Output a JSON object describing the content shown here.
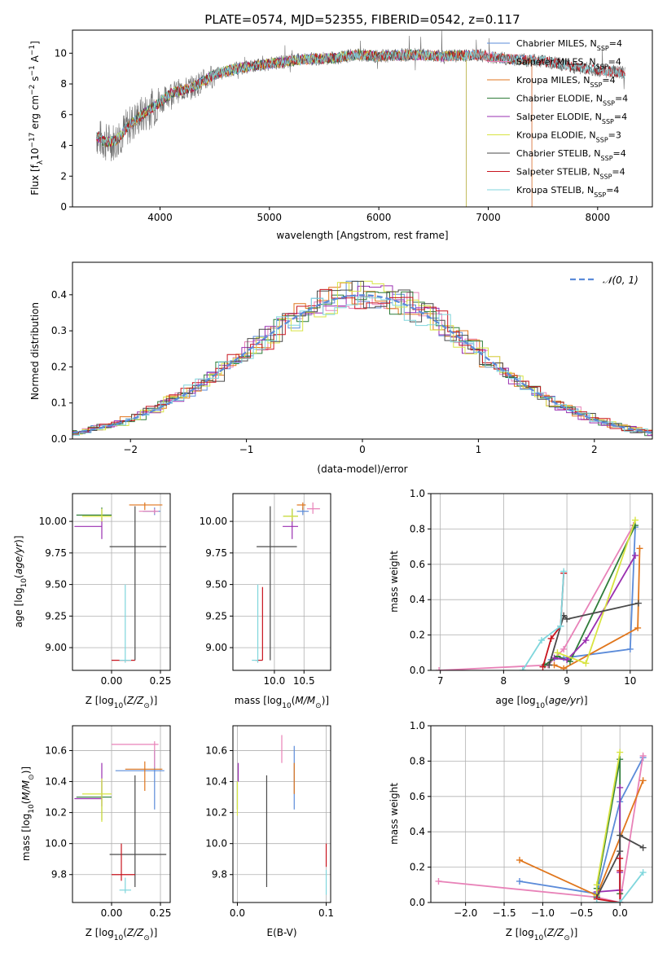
{
  "colors": {
    "Chabrier MILES": "#5b8bd9",
    "Salpeter MILES": "#e882b8",
    "Kroupa MILES": "#e0761c",
    "Chabrier ELODIE": "#2f7d3a",
    "Salpeter ELODIE": "#9a2fb0",
    "Kroupa ELODIE": "#d8e442",
    "Chabrier STELIB": "#4a4a4a",
    "Salpeter STELIB": "#c8141e",
    "Kroupa STELIB": "#7fd6dc",
    "data": "#707070",
    "normal": "#5b8bd9"
  },
  "chart_data": [
    {
      "id": "spectrum",
      "type": "line",
      "title": "PLATE=0574, MJD=52355, FIBERID=0542, z=0.117",
      "xlabel": "wavelength [Angstrom, rest frame]",
      "ylabel": "Flux [fλ10⁻¹⁷ erg cm⁻² s⁻¹ A⁻¹]",
      "xlim": [
        3200,
        8500
      ],
      "ylim": [
        0,
        11.5
      ],
      "xticks": [
        4000,
        5000,
        6000,
        7000,
        8000
      ],
      "yticks": [
        0,
        2,
        4,
        6,
        8,
        10
      ],
      "grid": false,
      "legend_position": "top-right",
      "legend": [
        "Chabrier MILES, N_SSP=4",
        "Salpeter MILES, N_SSP=4",
        "Kroupa MILES, N_SSP=4",
        "Chabrier ELODIE, N_SSP=4",
        "Salpeter ELODIE, N_SSP=4",
        "Kroupa ELODIE, N_SSP=3",
        "Chabrier STELIB, N_SSP=4",
        "Salpeter STELIB, N_SSP=4",
        "Kroupa STELIB, N_SSP=4"
      ],
      "continuum": [
        [
          3420,
          4.6
        ],
        [
          3500,
          4.2
        ],
        [
          3600,
          4.3
        ],
        [
          3700,
          5.2
        ],
        [
          3800,
          5.8
        ],
        [
          3900,
          6.3
        ],
        [
          4000,
          6.8
        ],
        [
          4100,
          7.4
        ],
        [
          4200,
          7.6
        ],
        [
          4300,
          7.8
        ],
        [
          4400,
          8.2
        ],
        [
          4500,
          8.6
        ],
        [
          4700,
          9.0
        ],
        [
          5000,
          9.3
        ],
        [
          5300,
          9.6
        ],
        [
          5600,
          9.7
        ],
        [
          5800,
          9.9
        ],
        [
          6000,
          9.8
        ],
        [
          6300,
          9.9
        ],
        [
          6600,
          9.8
        ],
        [
          6900,
          9.9
        ],
        [
          7200,
          9.6
        ],
        [
          7500,
          9.5
        ],
        [
          7800,
          9.1
        ],
        [
          8000,
          8.9
        ],
        [
          8250,
          8.7
        ]
      ],
      "model_ranges": {
        "MILES": [
          3420,
          7400
        ],
        "ELODIE": [
          3420,
          6800
        ],
        "STELIB": [
          3420,
          8250
        ]
      }
    },
    {
      "id": "residuals",
      "type": "histogram",
      "xlabel": "(data-model)/error",
      "ylabel": "Normed distribution",
      "xlim": [
        -2.5,
        2.5
      ],
      "ylim": [
        0,
        0.49
      ],
      "xticks": [
        -2,
        -1,
        0,
        1,
        2
      ],
      "yticks": [
        0.0,
        0.1,
        0.2,
        0.3,
        0.4
      ],
      "grid": true,
      "legend_position": "top-right",
      "legend": [
        "𝒩(0, 1)"
      ],
      "normal_curve": {
        "mean": 0,
        "sigma": 1
      }
    },
    {
      "id": "age_vs_Z",
      "type": "errorbar",
      "xlabel": "Z [log₁₀(Z/Z⊙)]",
      "ylabel": "age  [log₁₀(age/yr)]",
      "xlim": [
        -0.2,
        0.3
      ],
      "ylim": [
        8.82,
        10.22
      ],
      "xticks": [
        0.0,
        0.25
      ],
      "yticks": [
        9.0,
        9.25,
        9.5,
        9.75,
        10.0
      ],
      "points": [
        {
          "model": "Chabrier MILES",
          "x": 0.22,
          "y": 10.08,
          "xerr": [
            0.06,
            0.03
          ],
          "yerr": [
            0.03,
            0.03
          ]
        },
        {
          "model": "Salpeter MILES",
          "x": 0.22,
          "y": 10.08,
          "xerr": [
            0.08,
            0.02
          ],
          "yerr": [
            0.02,
            0.02
          ]
        },
        {
          "model": "Kroupa MILES",
          "x": 0.17,
          "y": 10.13,
          "xerr": [
            0.08,
            0.09
          ],
          "yerr": [
            0.04,
            0.02
          ]
        },
        {
          "model": "Chabrier ELODIE",
          "x": -0.05,
          "y": 10.05,
          "xerr": [
            0.13,
            0.05
          ],
          "yerr": [
            0.04,
            0.06
          ]
        },
        {
          "model": "Salpeter ELODIE",
          "x": -0.05,
          "y": 9.96,
          "xerr": [
            0.14,
            0.0
          ],
          "yerr": [
            0.1,
            0.07
          ]
        },
        {
          "model": "Kroupa ELODIE",
          "x": -0.05,
          "y": 10.04,
          "xerr": [
            0.1,
            0.05
          ],
          "yerr": [
            0.04,
            0.06
          ]
        },
        {
          "model": "Chabrier STELIB",
          "x": 0.12,
          "y": 9.8,
          "xerr": [
            0.13,
            0.16
          ],
          "yerr": [
            0.9,
            0.32
          ]
        },
        {
          "model": "Salpeter STELIB",
          "x": 0.05,
          "y": 8.9,
          "xerr": [
            0.05,
            0.07
          ],
          "yerr": [
            0.0,
            0.0
          ]
        },
        {
          "model": "Kroupa STELIB",
          "x": 0.07,
          "y": 8.9,
          "xerr": [
            0.03,
            0.03
          ],
          "yerr": [
            0.02,
            0.6
          ]
        }
      ]
    },
    {
      "id": "age_vs_mass",
      "type": "errorbar",
      "xlabel": "mass [log₁₀(M/M⊙)]",
      "ylabel": "",
      "xlim": [
        9.3,
        10.95
      ],
      "ylim": [
        8.82,
        10.22
      ],
      "xticks": [
        10.0,
        10.5
      ],
      "yticks": [
        9.0,
        9.25,
        9.5,
        9.75,
        10.0
      ],
      "points": [
        {
          "model": "Chabrier MILES",
          "x": 10.48,
          "y": 10.08,
          "xerr": [
            0.1,
            0.1
          ],
          "yerr": [
            0.03,
            0.03
          ]
        },
        {
          "model": "Salpeter MILES",
          "x": 10.65,
          "y": 10.1,
          "xerr": [
            0.1,
            0.12
          ],
          "yerr": [
            0.04,
            0.05
          ]
        },
        {
          "model": "Kroupa MILES",
          "x": 10.48,
          "y": 10.13,
          "xerr": [
            0.1,
            0.05
          ],
          "yerr": [
            0.04,
            0.02
          ]
        },
        {
          "model": "Chabrier ELODIE",
          "x": 10.3,
          "y": 10.04,
          "xerr": [
            0.15,
            0.1
          ],
          "yerr": [
            0.04,
            0.06
          ]
        },
        {
          "model": "Salpeter ELODIE",
          "x": 10.3,
          "y": 9.96,
          "xerr": [
            0.16,
            0.1
          ],
          "yerr": [
            0.1,
            0.07
          ]
        },
        {
          "model": "Kroupa ELODIE",
          "x": 10.3,
          "y": 10.04,
          "xerr": [
            0.15,
            0.1
          ],
          "yerr": [
            0.04,
            0.06
          ]
        },
        {
          "model": "Chabrier STELIB",
          "x": 9.93,
          "y": 9.8,
          "xerr": [
            0.23,
            0.45
          ],
          "yerr": [
            0.9,
            0.32
          ]
        },
        {
          "model": "Salpeter STELIB",
          "x": 9.8,
          "y": 8.9,
          "xerr": [
            0.12,
            0.0
          ],
          "yerr": [
            0.0,
            0.58
          ]
        },
        {
          "model": "Kroupa STELIB",
          "x": 9.72,
          "y": 8.9,
          "xerr": [
            0.1,
            0.0
          ],
          "yerr": [
            0.02,
            0.6
          ]
        }
      ]
    },
    {
      "id": "mass_weight_vs_age",
      "type": "line",
      "xlabel": "age  [log₁₀(age/yr)]",
      "ylabel": "mass weight",
      "xlim": [
        6.85,
        10.35
      ],
      "ylim": [
        0,
        1.0
      ],
      "xticks": [
        7,
        8,
        9,
        10
      ],
      "yticks": [
        0.0,
        0.2,
        0.4,
        0.6,
        0.8,
        1.0
      ],
      "grid": true,
      "series": [
        {
          "model": "Chabrier MILES",
          "x": [
            8.75,
            8.95,
            10.0,
            10.08
          ],
          "y": [
            0.06,
            0.07,
            0.12,
            0.81
          ]
        },
        {
          "model": "Salpeter MILES",
          "x": [
            6.98,
            8.7,
            8.95,
            10.05
          ],
          "y": [
            0.0,
            0.03,
            0.12,
            0.82
          ]
        },
        {
          "model": "Kroupa MILES",
          "x": [
            8.8,
            8.95,
            10.12,
            10.15
          ],
          "y": [
            0.03,
            0.01,
            0.24,
            0.69
          ]
        },
        {
          "model": "Chabrier ELODIE",
          "x": [
            8.65,
            8.85,
            9.05,
            10.08
          ],
          "y": [
            0.03,
            0.08,
            0.05,
            0.82
          ]
        },
        {
          "model": "Salpeter ELODIE",
          "x": [
            8.8,
            9.0,
            9.3,
            10.08
          ],
          "y": [
            0.07,
            0.06,
            0.17,
            0.65
          ]
        },
        {
          "model": "Kroupa ELODIE",
          "x": [
            8.85,
            9.3,
            10.08
          ],
          "y": [
            0.1,
            0.04,
            0.85
          ]
        },
        {
          "model": "Chabrier STELIB",
          "x": [
            8.72,
            8.95,
            9.0,
            10.13
          ],
          "y": [
            0.03,
            0.31,
            0.29,
            0.38
          ]
        },
        {
          "model": "Salpeter STELIB",
          "x": [
            8.62,
            8.75,
            8.9,
            8.95
          ],
          "y": [
            0.02,
            0.18,
            0.25,
            0.55
          ]
        },
        {
          "model": "Kroupa STELIB",
          "x": [
            8.3,
            8.6,
            8.9,
            8.95
          ],
          "y": [
            0.0,
            0.17,
            0.25,
            0.56
          ]
        }
      ]
    },
    {
      "id": "mass_vs_Z",
      "type": "errorbar",
      "xlabel": "Z [log₁₀(Z/Z⊙)]",
      "ylabel": "mass [log₁₀(M/M⊙)]",
      "xlim": [
        -0.2,
        0.3
      ],
      "ylim": [
        9.62,
        10.76
      ],
      "xticks": [
        0.0,
        0.25
      ],
      "yticks": [
        9.8,
        10.0,
        10.2,
        10.4,
        10.6
      ],
      "points": [
        {
          "model": "Chabrier MILES",
          "x": 0.22,
          "y": 10.47,
          "xerr": [
            0.2,
            0.05
          ],
          "yerr": [
            0.25,
            0.13
          ]
        },
        {
          "model": "Salpeter MILES",
          "x": 0.22,
          "y": 10.64,
          "xerr": [
            0.22,
            0.02
          ],
          "yerr": [
            0.15,
            0.02
          ]
        },
        {
          "model": "Kroupa MILES",
          "x": 0.17,
          "y": 10.48,
          "xerr": [
            0.1,
            0.09
          ],
          "yerr": [
            0.14,
            0.05
          ]
        },
        {
          "model": "Chabrier ELODIE",
          "x": -0.05,
          "y": 10.3,
          "xerr": [
            0.13,
            0.05
          ],
          "yerr": [
            0.15,
            0.1
          ]
        },
        {
          "model": "Salpeter ELODIE",
          "x": -0.05,
          "y": 10.29,
          "xerr": [
            0.14,
            0.0
          ],
          "yerr": [
            0.05,
            0.23
          ]
        },
        {
          "model": "Kroupa ELODIE",
          "x": -0.05,
          "y": 10.32,
          "xerr": [
            0.1,
            0.05
          ],
          "yerr": [
            0.18,
            0.1
          ]
        },
        {
          "model": "Chabrier STELIB",
          "x": 0.12,
          "y": 9.93,
          "xerr": [
            0.13,
            0.16
          ],
          "yerr": [
            0.21,
            0.51
          ]
        },
        {
          "model": "Salpeter STELIB",
          "x": 0.05,
          "y": 9.8,
          "xerr": [
            0.05,
            0.07
          ],
          "yerr": [
            0.04,
            0.2
          ]
        },
        {
          "model": "Kroupa STELIB",
          "x": 0.07,
          "y": 9.7,
          "xerr": [
            0.03,
            0.03
          ],
          "yerr": [
            0.02,
            0.08
          ]
        }
      ]
    },
    {
      "id": "mass_vs_EBV",
      "type": "errorbar",
      "xlabel": "E(B-V)",
      "ylabel": "",
      "xlim": [
        -0.005,
        0.105
      ],
      "ylim": [
        9.62,
        10.76
      ],
      "xticks": [
        0.0,
        0.1
      ],
      "yticks": [
        9.8,
        10.0,
        10.2,
        10.4,
        10.6
      ],
      "points": [
        {
          "model": "Chabrier MILES",
          "x": 0.064,
          "y": 10.47,
          "xerr": [
            0,
            0
          ],
          "yerr": [
            0.25,
            0.16
          ]
        },
        {
          "model": "Salpeter MILES",
          "x": 0.05,
          "y": 10.6,
          "xerr": [
            0,
            0
          ],
          "yerr": [
            0.08,
            0.1
          ]
        },
        {
          "model": "Kroupa MILES",
          "x": 0.064,
          "y": 10.46,
          "xerr": [
            0,
            0
          ],
          "yerr": [
            0.14,
            0.06
          ]
        },
        {
          "model": "Chabrier ELODIE",
          "x": 0.0,
          "y": 10.3,
          "xerr": [
            0,
            0
          ],
          "yerr": [
            0.08,
            0.1
          ]
        },
        {
          "model": "Salpeter ELODIE",
          "x": 0.001,
          "y": 10.46,
          "xerr": [
            0,
            0
          ],
          "yerr": [
            0.06,
            0.06
          ]
        },
        {
          "model": "Kroupa ELODIE",
          "x": 0.0,
          "y": 10.3,
          "xerr": [
            0,
            0
          ],
          "yerr": [
            0.12,
            0.1
          ]
        },
        {
          "model": "Chabrier STELIB",
          "x": 0.033,
          "y": 10.08,
          "xerr": [
            0,
            0
          ],
          "yerr": [
            0.36,
            0.36
          ]
        },
        {
          "model": "Salpeter STELIB",
          "x": 0.1,
          "y": 9.92,
          "xerr": [
            0,
            0
          ],
          "yerr": [
            0.07,
            0.08
          ]
        },
        {
          "model": "Kroupa STELIB",
          "x": 0.1,
          "y": 9.75,
          "xerr": [
            0,
            0
          ],
          "yerr": [
            0.08,
            0.08
          ]
        }
      ]
    },
    {
      "id": "mass_weight_vs_Z",
      "type": "line",
      "xlabel": "Z [log₁₀(Z/Z⊙)]",
      "ylabel": "mass weight",
      "xlim": [
        -2.45,
        0.42
      ],
      "ylim": [
        0,
        1.0
      ],
      "xticks": [
        -2.0,
        -1.5,
        -1.0,
        -0.5,
        0.0
      ],
      "yticks": [
        0.0,
        0.2,
        0.4,
        0.6,
        0.8,
        1.0
      ],
      "grid": true,
      "series": [
        {
          "model": "Chabrier MILES",
          "x": [
            -1.3,
            -0.3,
            0.0,
            0.3
          ],
          "y": [
            0.12,
            0.05,
            0.57,
            0.82
          ]
        },
        {
          "model": "Salpeter MILES",
          "x": [
            -2.35,
            -0.3,
            0.0,
            0.3
          ],
          "y": [
            0.12,
            0.03,
            0.0,
            0.83
          ]
        },
        {
          "model": "Kroupa MILES",
          "x": [
            -1.3,
            -0.3,
            0.3
          ],
          "y": [
            0.24,
            0.04,
            0.69
          ]
        },
        {
          "model": "Chabrier ELODIE",
          "x": [
            -0.3,
            -0.3,
            0.0,
            0.0
          ],
          "y": [
            0.03,
            0.08,
            0.81,
            0.05
          ]
        },
        {
          "model": "Salpeter ELODIE",
          "x": [
            -0.3,
            0.0,
            0.0,
            0.0
          ],
          "y": [
            0.06,
            0.07,
            0.17,
            0.65
          ]
        },
        {
          "model": "Kroupa ELODIE",
          "x": [
            -0.3,
            -0.3,
            0.0
          ],
          "y": [
            0.04,
            0.1,
            0.85
          ]
        },
        {
          "model": "Chabrier STELIB",
          "x": [
            -0.3,
            0.0,
            0.0,
            0.3
          ],
          "y": [
            0.03,
            0.29,
            0.38,
            0.31
          ]
        },
        {
          "model": "Salpeter STELIB",
          "x": [
            -0.3,
            0.0,
            0.0,
            0.0
          ],
          "y": [
            0.02,
            0.0,
            0.25,
            0.18
          ]
        },
        {
          "model": "Kroupa STELIB",
          "x": [
            -0.3,
            0.0,
            0.3
          ],
          "y": [
            0.0,
            0.0,
            0.17
          ]
        }
      ]
    }
  ]
}
